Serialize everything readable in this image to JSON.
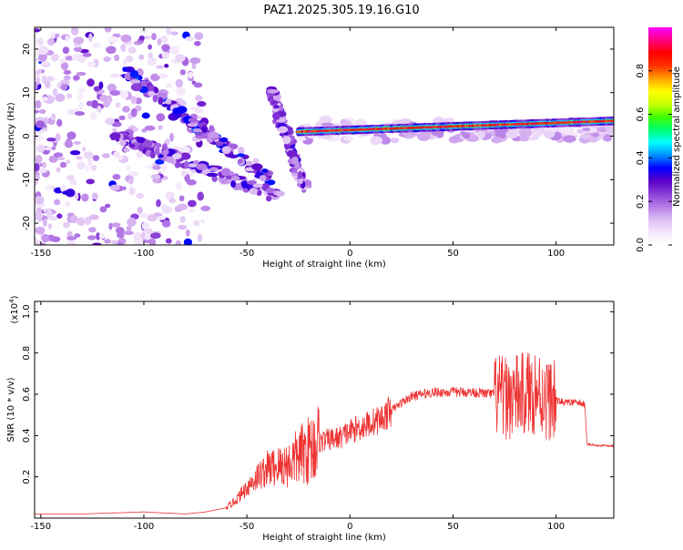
{
  "title": "PAZ1.2025.305.19.16.G10",
  "chart_data": [
    {
      "type": "heatmap",
      "name": "spectrogram",
      "xlabel": "Height of straight line (km)",
      "ylabel": "Frequency (Hz)",
      "xlim": [
        -153,
        128
      ],
      "ylim": [
        -25,
        25
      ],
      "xticks": [
        -150,
        -100,
        -50,
        0,
        50,
        100
      ],
      "xtick_labels": [
        "-150",
        "-100",
        "-50",
        "0",
        "50",
        "100"
      ],
      "yticks": [
        -20,
        -10,
        0,
        10,
        20
      ],
      "ytick_labels": [
        "-20",
        "-10",
        "0",
        "10",
        "20"
      ],
      "colorbar": {
        "label": "Normalized spectral amplitude",
        "range": [
          0,
          1
        ],
        "ticks": [
          0.0,
          0.2,
          0.4,
          0.6,
          0.8
        ],
        "tick_labels": [
          "0.0",
          "0.2",
          "0.4",
          "0.6",
          "0.8"
        ],
        "stops": [
          "#ffffff",
          "#f3e6fa",
          "#ddbdf3",
          "#b57ae6",
          "#8a3fd8",
          "#5a00c8",
          "#0000ff",
          "#0090ff",
          "#00ffff",
          "#00ff70",
          "#40ff00",
          "#c8ff00",
          "#ffff00",
          "#ffa000",
          "#ff3000",
          "#ff0000",
          "#ff0080",
          "#ff00ff"
        ]
      },
      "features": [
        {
          "name": "main-carrier",
          "description": "strong carrier near 0-2 Hz",
          "x": [
            -25,
            128
          ],
          "freq": [
            0,
            2.5
          ],
          "amplitude": 0.9
        },
        {
          "name": "upper-branch",
          "description": "diagonal branch descending from ~15 Hz",
          "x": [
            -110,
            -38
          ],
          "freq": [
            15,
            -10
          ],
          "amplitude": 0.35
        },
        {
          "name": "lower-branch",
          "description": "branch near 0 Hz descending",
          "x": [
            -115,
            -35
          ],
          "freq": [
            0.5,
            -14
          ],
          "amplitude": 0.3
        },
        {
          "name": "secondary-branch",
          "description": "secondary diagonal",
          "x": [
            -38,
            -22
          ],
          "freq": [
            10,
            -12
          ],
          "amplitude": 0.3
        },
        {
          "name": "noise-region",
          "description": "scattered low-amplitude noise",
          "x": [
            -153,
            -70
          ],
          "freq": [
            -25,
            25
          ],
          "amplitude": 0.15
        }
      ]
    },
    {
      "type": "line",
      "name": "snr",
      "xlabel": "Height of straight line (km)",
      "ylabel": "SNR (10 * v/v)",
      "y_multiplier": "(x10",
      "y_multiplier_exp": "4",
      "y_multiplier_close": ")",
      "xlim": [
        -153,
        128
      ],
      "ylim": [
        0,
        1.05
      ],
      "xticks": [
        -150,
        -100,
        -50,
        0,
        50,
        100
      ],
      "xtick_labels": [
        "-150",
        "-100",
        "-50",
        "0",
        "50",
        "100"
      ],
      "yticks": [
        0.2,
        0.4,
        0.6,
        0.8,
        1.0
      ],
      "ytick_labels": [
        "0.2",
        "0.4",
        "0.6",
        "0.8",
        "1.0"
      ],
      "color": "#ee3333",
      "series": [
        {
          "name": "SNR envelope",
          "x": [
            -153,
            -130,
            -100,
            -80,
            -70,
            -60,
            -55,
            -50,
            -45,
            -40,
            -35,
            -30,
            -25,
            -20,
            -15,
            -10,
            -5,
            0,
            5,
            10,
            15,
            20,
            25,
            30,
            40,
            50,
            60,
            70,
            75,
            80,
            85,
            90,
            95,
            100,
            105,
            110,
            114,
            115,
            120,
            128
          ],
          "y": [
            0.02,
            0.02,
            0.03,
            0.02,
            0.03,
            0.05,
            0.09,
            0.15,
            0.2,
            0.24,
            0.25,
            0.26,
            0.3,
            0.33,
            0.37,
            0.38,
            0.39,
            0.42,
            0.44,
            0.46,
            0.48,
            0.52,
            0.56,
            0.59,
            0.61,
            0.61,
            0.61,
            0.6,
            0.58,
            0.59,
            0.6,
            0.62,
            0.58,
            0.57,
            0.56,
            0.56,
            0.55,
            0.36,
            0.35,
            0.35
          ]
        }
      ]
    }
  ]
}
